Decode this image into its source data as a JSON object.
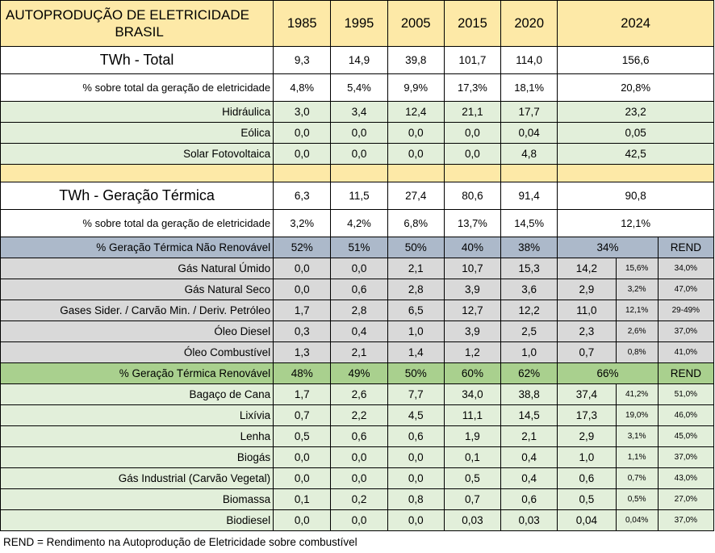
{
  "header": {
    "title_line1": "AUTOPRODUÇÃO DE ELETRICIDADE",
    "title_line2": "BRASIL",
    "years": [
      "1985",
      "1995",
      "2005",
      "2015",
      "2020",
      "2024"
    ]
  },
  "rows": {
    "twh_total": {
      "label": "TWh - Total",
      "v": [
        "9,3",
        "14,9",
        "39,8",
        "101,7",
        "114,0",
        "156,6"
      ]
    },
    "pct_total": {
      "label": "% sobre total da geração de eletricidade",
      "v": [
        "4,8%",
        "5,4%",
        "9,9%",
        "17,3%",
        "18,1%",
        "20,8%"
      ]
    },
    "hidraulica": {
      "label": "Hidráulica",
      "v": [
        "3,0",
        "3,4",
        "12,4",
        "21,1",
        "17,7",
        "23,2"
      ]
    },
    "eolica": {
      "label": "Eólica",
      "v": [
        "0,0",
        "0,0",
        "0,0",
        "0,0",
        "0,04",
        "0,05"
      ]
    },
    "solar": {
      "label": "Solar Fotovoltaica",
      "v": [
        "0,0",
        "0,0",
        "0,0",
        "0,0",
        "4,8",
        "42,5"
      ]
    },
    "twh_termica": {
      "label": "TWh - Geração Térmica",
      "v": [
        "6,3",
        "11,5",
        "27,4",
        "80,6",
        "91,4",
        "90,8"
      ]
    },
    "pct_termica": {
      "label": "% sobre total da geração de eletricidade",
      "v": [
        "3,2%",
        "4,2%",
        "6,8%",
        "13,7%",
        "14,5%",
        "12,1%"
      ]
    },
    "nao_renovavel": {
      "label": "% Geração Térmica Não Renovável",
      "v": [
        "52%",
        "51%",
        "50%",
        "40%",
        "38%",
        "34%"
      ],
      "rend": "REND"
    },
    "renovavel": {
      "label": "% Geração Térmica Renovável",
      "v": [
        "48%",
        "49%",
        "50%",
        "60%",
        "62%",
        "66%"
      ],
      "rend": "REND"
    }
  },
  "nao_renovaveis": [
    {
      "label": "Gás Natural Úmido",
      "v": [
        "0,0",
        "0,0",
        "2,1",
        "10,7",
        "15,3",
        "14,2"
      ],
      "share": "15,6%",
      "rend": "34,0%"
    },
    {
      "label": "Gás Natural Seco",
      "v": [
        "0,0",
        "0,6",
        "2,8",
        "3,9",
        "3,6",
        "2,9"
      ],
      "share": "3,2%",
      "rend": "47,0%"
    },
    {
      "label": "Gases Sider. / Carvão Min. / Deriv. Petróleo",
      "v": [
        "1,7",
        "2,8",
        "6,5",
        "12,7",
        "12,2",
        "11,0"
      ],
      "share": "12,1%",
      "rend": "29-49%"
    },
    {
      "label": "Óleo Diesel",
      "v": [
        "0,3",
        "0,4",
        "1,0",
        "3,9",
        "2,5",
        "2,3"
      ],
      "share": "2,6%",
      "rend": "37,0%"
    },
    {
      "label": "Óleo Combustível",
      "v": [
        "1,3",
        "2,1",
        "1,4",
        "1,2",
        "1,0",
        "0,7"
      ],
      "share": "0,8%",
      "rend": "41,0%"
    }
  ],
  "renovaveis": [
    {
      "label": "Bagaço de Cana",
      "v": [
        "1,7",
        "2,6",
        "7,7",
        "34,0",
        "38,8",
        "37,4"
      ],
      "share": "41,2%",
      "rend": "51,0%"
    },
    {
      "label": "Lixívia",
      "v": [
        "0,7",
        "2,2",
        "4,5",
        "11,1",
        "14,5",
        "17,3"
      ],
      "share": "19,0%",
      "rend": "46,0%"
    },
    {
      "label": "Lenha",
      "v": [
        "0,5",
        "0,6",
        "0,6",
        "1,9",
        "2,1",
        "2,9"
      ],
      "share": "3,1%",
      "rend": "45,0%"
    },
    {
      "label": "Biogás",
      "v": [
        "0,0",
        "0,0",
        "0,0",
        "0,1",
        "0,4",
        "1,0"
      ],
      "share": "1,1%",
      "rend": "37,0%"
    },
    {
      "label": "Gás Industrial (Carvão Vegetal)",
      "v": [
        "0,0",
        "0,0",
        "0,0",
        "0,5",
        "0,4",
        "0,6"
      ],
      "share": "0,7%",
      "rend": "43,0%"
    },
    {
      "label": "Biomassa",
      "v": [
        "0,1",
        "0,2",
        "0,8",
        "0,7",
        "0,6",
        "0,5"
      ],
      "share": "0,5%",
      "rend": "27,0%"
    },
    {
      "label": "Biodiesel",
      "v": [
        "0,0",
        "0,0",
        "0,0",
        "0,03",
        "0,03",
        "0,04"
      ],
      "share": "0,04%",
      "rend": "37,0%"
    }
  ],
  "footnote": "REND = Rendimento na Autoprodução de Eletricidade sobre combustível",
  "colors": {
    "header_bg": "#fde9a7",
    "green_light": "#e2efda",
    "green_header": "#a9d08e",
    "blue_header": "#acb9ca",
    "gray": "#d9d9d9"
  }
}
